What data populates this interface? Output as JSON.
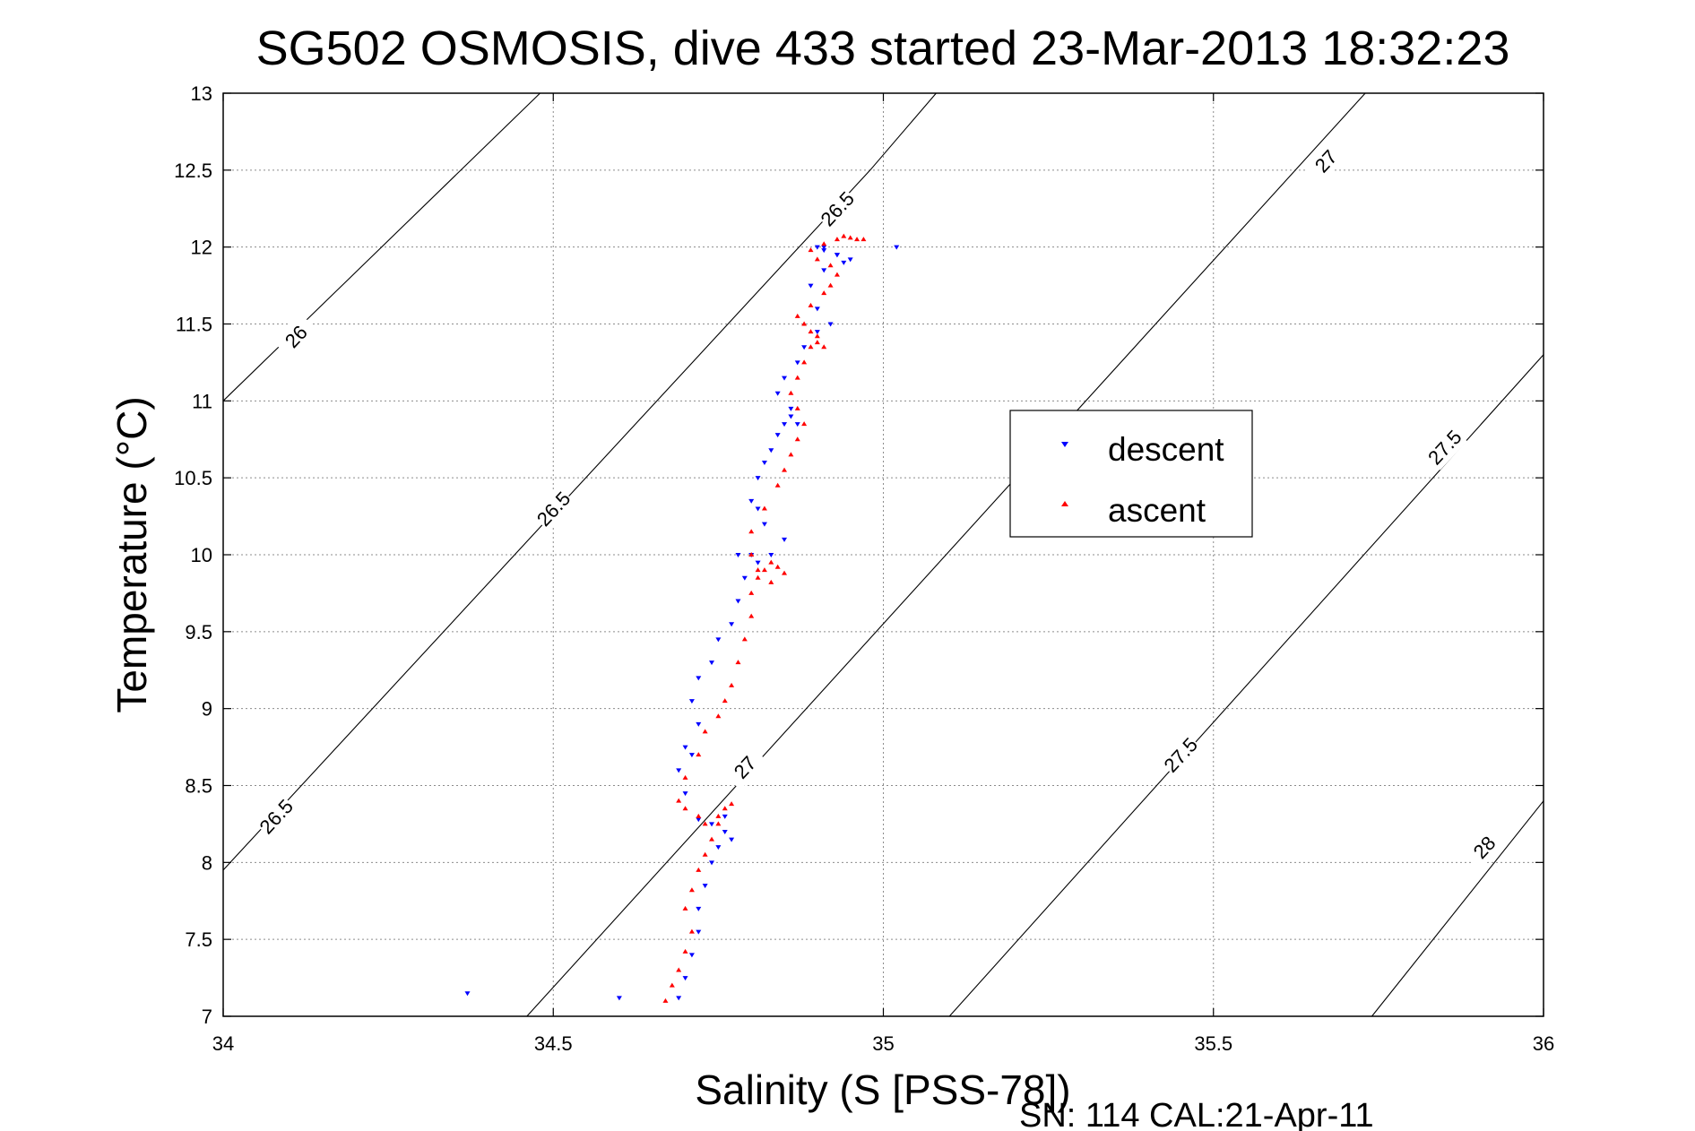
{
  "chart_data": {
    "type": "scatter",
    "title": "SG502 OSMOSIS, dive 433 started 23-Mar-2013 18:32:23",
    "xlabel": "Salinity (S [PSS-78])",
    "ylabel": "Temperature (°C)",
    "footnote": "SN: 114  CAL:21-Apr-11",
    "xlim": [
      34,
      36
    ],
    "ylim": [
      7,
      13
    ],
    "xticks": [
      "34",
      "34.5",
      "35",
      "35.5",
      "36"
    ],
    "yticks": [
      "7",
      "7.5",
      "8",
      "8.5",
      "9",
      "9.5",
      "10",
      "10.5",
      "11",
      "11.5",
      "12",
      "12.5",
      "13"
    ],
    "grid": true,
    "legend_position": "center-right",
    "legend": [
      {
        "label": "descent",
        "color": "#0000ff",
        "marker": "triangle-down"
      },
      {
        "label": "ascent",
        "color": "#ff0000",
        "marker": "triangle-up"
      }
    ],
    "isopycnals": [
      {
        "label": "26",
        "points": [
          [
            34.0,
            11.0
          ],
          [
            34.48,
            13.0
          ]
        ],
        "label_at": [
          34.11,
          11.42
        ]
      },
      {
        "label": "26.5",
        "points": [
          [
            34.0,
            7.95
          ],
          [
            34.98,
            12.5
          ],
          [
            35.08,
            13.0
          ]
        ],
        "label_at": [
          34.08,
          8.3
        ]
      },
      {
        "label": "26.5",
        "points": [],
        "label_at": [
          34.5,
          10.3
        ]
      },
      {
        "label": "26.5",
        "points": [],
        "label_at": [
          34.93,
          12.25
        ]
      },
      {
        "label": "27",
        "points": [
          [
            34.46,
            7.0
          ],
          [
            35.73,
            13.0
          ]
        ],
        "label_at": [
          34.79,
          8.62
        ]
      },
      {
        "label": "27",
        "points": [],
        "label_at": [
          35.67,
          12.56
        ]
      },
      {
        "label": "27.5",
        "points": [
          [
            35.1,
            7.0
          ],
          [
            36.0,
            11.3
          ]
        ],
        "label_at": [
          35.45,
          8.7
        ]
      },
      {
        "label": "27.5",
        "points": [],
        "label_at": [
          35.85,
          10.7
        ]
      },
      {
        "label": "28",
        "points": [
          [
            35.74,
            7.0
          ],
          [
            36.0,
            8.4
          ]
        ],
        "label_at": [
          35.91,
          8.1
        ]
      }
    ],
    "series": [
      {
        "name": "descent",
        "color": "#0000ff",
        "x": [
          34.37,
          34.6,
          34.69,
          34.7,
          34.71,
          34.72,
          34.72,
          34.73,
          34.74,
          34.75,
          34.76,
          34.77,
          34.76,
          34.74,
          34.72,
          34.7,
          34.69,
          34.7,
          34.71,
          34.72,
          34.71,
          34.72,
          34.74,
          34.75,
          34.77,
          34.78,
          34.79,
          34.78,
          34.8,
          34.81,
          34.83,
          34.85,
          34.82,
          34.81,
          34.8,
          34.81,
          34.82,
          34.83,
          34.84,
          34.85,
          34.86,
          34.87,
          34.86,
          34.84,
          34.85,
          34.87,
          34.88,
          34.9,
          34.92,
          34.9,
          34.89,
          34.91,
          34.93,
          34.91,
          34.9,
          34.91,
          34.93,
          34.94,
          34.95,
          35.02
        ],
        "y": [
          7.15,
          7.12,
          7.12,
          7.25,
          7.4,
          7.55,
          7.7,
          7.85,
          8.0,
          8.1,
          8.2,
          8.15,
          8.3,
          8.25,
          8.28,
          8.45,
          8.6,
          8.75,
          8.7,
          8.9,
          9.05,
          9.2,
          9.3,
          9.45,
          9.55,
          9.7,
          9.85,
          10.0,
          10.0,
          9.95,
          10.0,
          10.1,
          10.2,
          10.3,
          10.35,
          10.5,
          10.6,
          10.68,
          10.78,
          10.85,
          10.9,
          10.85,
          10.95,
          11.05,
          11.15,
          11.25,
          11.35,
          11.45,
          11.5,
          11.6,
          11.75,
          11.85,
          11.95,
          12.0,
          12.0,
          11.98,
          11.95,
          11.9,
          11.92,
          12.0
        ]
      },
      {
        "name": "ascent",
        "color": "#ff0000",
        "x": [
          34.67,
          34.68,
          34.69,
          34.7,
          34.71,
          34.7,
          34.71,
          34.72,
          34.73,
          34.74,
          34.75,
          34.76,
          34.77,
          34.75,
          34.73,
          34.72,
          34.7,
          34.69,
          34.7,
          34.72,
          34.73,
          34.75,
          34.76,
          34.77,
          34.78,
          34.79,
          34.8,
          34.8,
          34.81,
          34.82,
          34.83,
          34.84,
          34.85,
          34.83,
          34.81,
          34.8,
          34.8,
          34.82,
          34.84,
          34.85,
          34.86,
          34.87,
          34.88,
          34.87,
          34.86,
          34.87,
          34.88,
          34.89,
          34.9,
          34.91,
          34.9,
          34.89,
          34.88,
          34.87,
          34.89,
          34.91,
          34.92,
          34.93,
          34.92,
          34.9,
          34.89,
          34.91,
          34.93,
          34.94,
          34.95,
          34.96,
          34.97
        ],
        "y": [
          7.1,
          7.2,
          7.3,
          7.42,
          7.55,
          7.7,
          7.82,
          7.95,
          8.05,
          8.15,
          8.25,
          8.35,
          8.38,
          8.3,
          8.25,
          8.3,
          8.35,
          8.4,
          8.55,
          8.7,
          8.85,
          8.95,
          9.05,
          9.15,
          9.3,
          9.45,
          9.6,
          9.75,
          9.85,
          9.9,
          9.95,
          9.92,
          9.88,
          9.82,
          9.9,
          10.0,
          10.15,
          10.3,
          10.45,
          10.55,
          10.65,
          10.75,
          10.85,
          10.95,
          11.05,
          11.15,
          11.25,
          11.35,
          11.38,
          11.35,
          11.42,
          11.45,
          11.5,
          11.55,
          11.62,
          11.7,
          11.75,
          11.82,
          11.88,
          11.92,
          11.98,
          12.02,
          12.05,
          12.07,
          12.06,
          12.05,
          12.05
        ]
      }
    ]
  }
}
